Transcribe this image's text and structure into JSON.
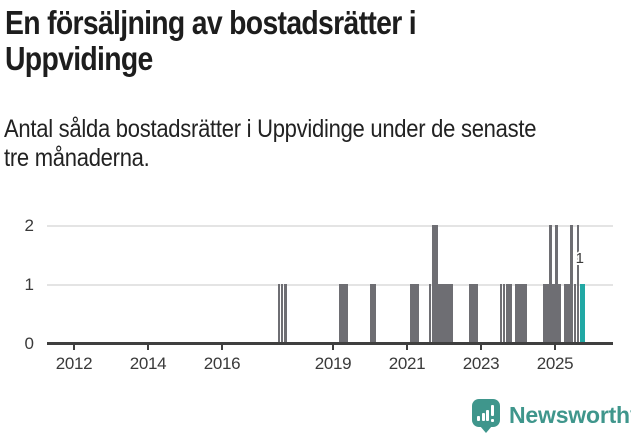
{
  "header": {
    "title_lines": [
      "En försäljning av bostadsrätter i",
      "Uppvidinge"
    ],
    "title_full": "En försäljning av bostadsrätter i Uppvidinge",
    "subtitle_lines": [
      "Antal sålda bostadsrätter i Uppvidinge under de senaste",
      "tre månaderna."
    ],
    "subtitle_full": "Antal sålda bostadsrätter i Uppvidinge under de senaste tre månaderna."
  },
  "chart_data": {
    "type": "bar",
    "title": "En försäljning av bostadsrätter i Uppvidinge",
    "xlabel": "",
    "ylabel": "",
    "x_axis_years_range": [
      2011.3,
      2026.6
    ],
    "x_ticks": [
      2012,
      2014,
      2016,
      2019,
      2021,
      2023,
      2025
    ],
    "y_ticks": [
      0,
      1,
      2
    ],
    "ylim": [
      0,
      2
    ],
    "grid": "horizontal",
    "legend": "none",
    "bar_color": "#6e6e73",
    "highlight_color": "#21a8a4",
    "highlight_month": "2025-09",
    "annotation": {
      "text": "1",
      "target_month": "2025-09"
    },
    "series": [
      {
        "month": "2017-07",
        "value": 1
      },
      {
        "month": "2017-08",
        "value": 1
      },
      {
        "month": "2017-09",
        "value": 1
      },
      {
        "month": "2019-03",
        "value": 1
      },
      {
        "month": "2019-04",
        "value": 1
      },
      {
        "month": "2019-05",
        "value": 1
      },
      {
        "month": "2020-01",
        "value": 1
      },
      {
        "month": "2020-02",
        "value": 1
      },
      {
        "month": "2021-02",
        "value": 1
      },
      {
        "month": "2021-03",
        "value": 1
      },
      {
        "month": "2021-04",
        "value": 1
      },
      {
        "month": "2021-08",
        "value": 1
      },
      {
        "month": "2021-09",
        "value": 2
      },
      {
        "month": "2021-10",
        "value": 2
      },
      {
        "month": "2021-11",
        "value": 1
      },
      {
        "month": "2021-12",
        "value": 1
      },
      {
        "month": "2022-01",
        "value": 1
      },
      {
        "month": "2022-02",
        "value": 1
      },
      {
        "month": "2022-03",
        "value": 1
      },
      {
        "month": "2022-09",
        "value": 1
      },
      {
        "month": "2022-10",
        "value": 1
      },
      {
        "month": "2022-11",
        "value": 1
      },
      {
        "month": "2023-07",
        "value": 1
      },
      {
        "month": "2023-08",
        "value": 1
      },
      {
        "month": "2023-09",
        "value": 1
      },
      {
        "month": "2023-10",
        "value": 1
      },
      {
        "month": "2023-12",
        "value": 1
      },
      {
        "month": "2024-01",
        "value": 1
      },
      {
        "month": "2024-02",
        "value": 1
      },
      {
        "month": "2024-03",
        "value": 1
      },
      {
        "month": "2024-09",
        "value": 1
      },
      {
        "month": "2024-10",
        "value": 1
      },
      {
        "month": "2024-11",
        "value": 2
      },
      {
        "month": "2024-12",
        "value": 1
      },
      {
        "month": "2025-01",
        "value": 2
      },
      {
        "month": "2025-02",
        "value": 1
      },
      {
        "month": "2025-04",
        "value": 1
      },
      {
        "month": "2025-05",
        "value": 1
      },
      {
        "month": "2025-06",
        "value": 2
      },
      {
        "month": "2025-07",
        "value": 1
      },
      {
        "month": "2025-08",
        "value": 2
      },
      {
        "month": "2025-09",
        "value": 1,
        "highlight": true
      }
    ]
  },
  "footer": {
    "brand": "Newsworthy",
    "logo_icon": "speech-bubble-bar-chart-icon",
    "brand_color": "#3f968c"
  }
}
